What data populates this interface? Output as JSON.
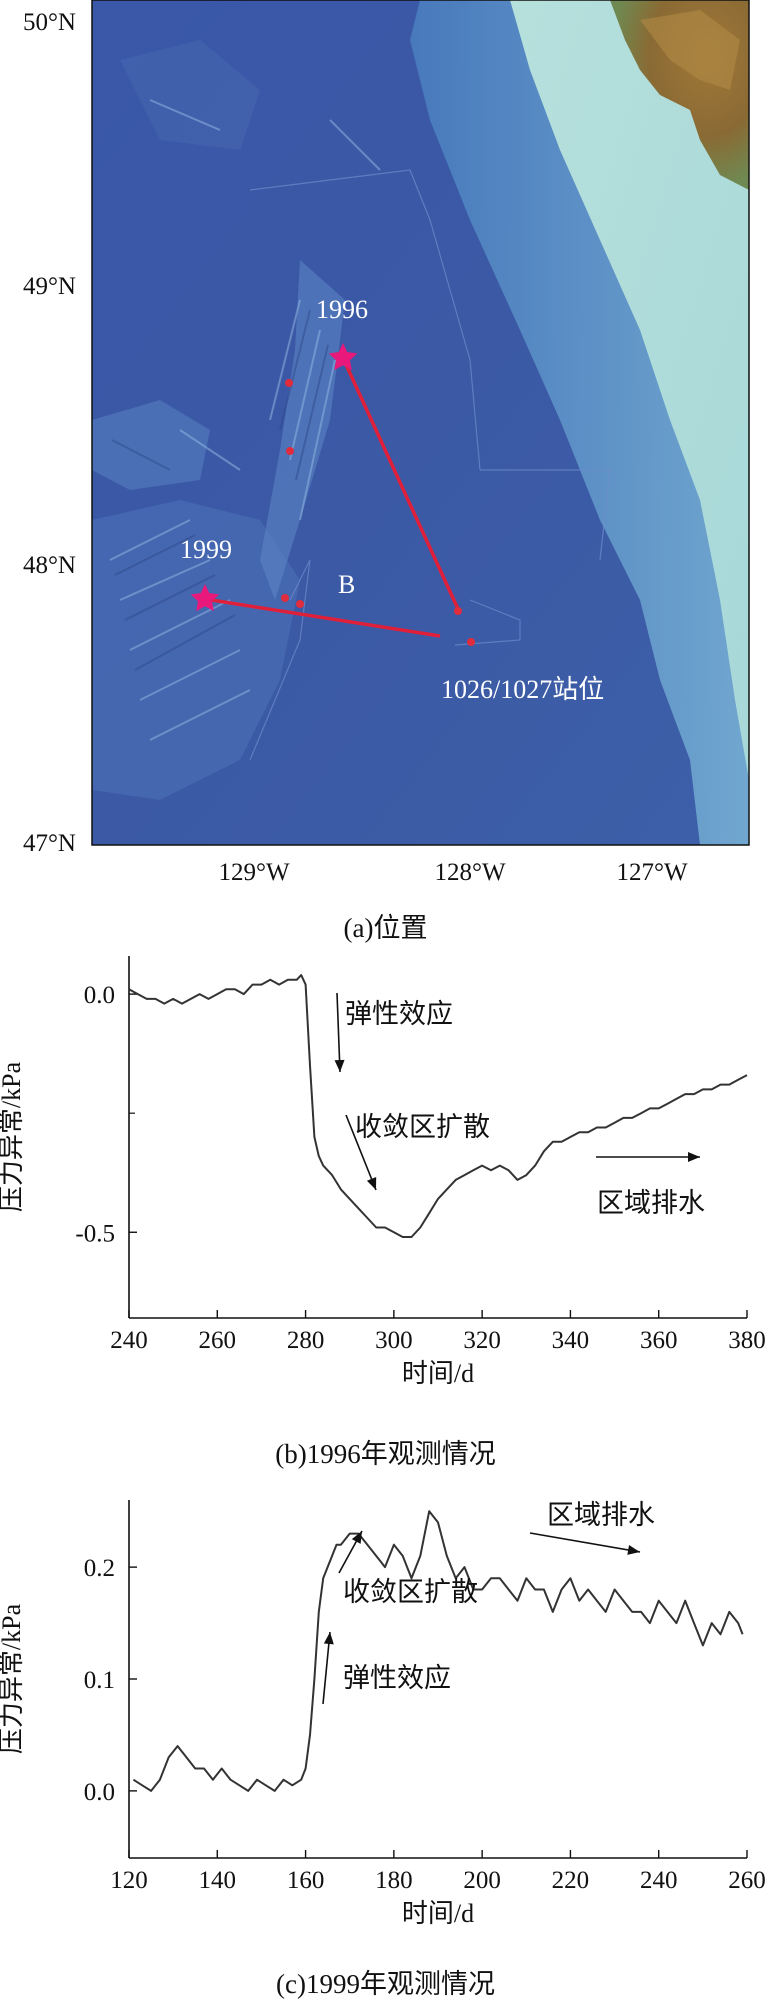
{
  "panel_a": {
    "caption": "(a)位置",
    "lat_labels": [
      "50°N",
      "49°N",
      "48°N",
      "47°N"
    ],
    "lon_labels": [
      "129°W",
      "128°W",
      "127°W"
    ],
    "label_1996": "1996",
    "label_1999": "1999",
    "label_B": "B",
    "label_station": "1026/1027站位",
    "colors": {
      "star": "#e8197a",
      "line": "#e0203a",
      "ocean": "#3e5aa6",
      "shelf": "#9fd2d6",
      "land": "#9a7a3a"
    }
  },
  "chart_data": [
    {
      "type": "line",
      "caption": "(b)1996年观测情况",
      "xlabel": "时间/d",
      "ylabel": "压力异常/kPa",
      "xlim": [
        240,
        380
      ],
      "ylim": [
        -0.68,
        0.08
      ],
      "xticks": [
        "240",
        "260",
        "280",
        "300",
        "320",
        "340",
        "360",
        "380"
      ],
      "yticks": [
        {
          "value": 0.0,
          "label": "0.0"
        },
        {
          "value": -0.5,
          "label": "-0.5"
        }
      ],
      "annotations": [
        "弹性效应",
        "收敛区扩散",
        "区域排水"
      ],
      "series": [
        {
          "x": [
            240,
            242,
            244,
            246,
            248,
            250,
            252,
            254,
            256,
            258,
            260,
            262,
            264,
            266,
            268,
            270,
            272,
            274,
            276,
            278,
            279,
            280,
            281,
            282,
            283,
            284,
            286,
            288,
            290,
            292,
            294,
            296,
            298,
            300,
            302,
            304,
            306,
            308,
            310,
            312,
            314,
            316,
            318,
            320,
            322,
            324,
            326,
            328,
            330,
            332,
            334,
            336,
            338,
            340,
            342,
            344,
            346,
            348,
            350,
            352,
            354,
            356,
            358,
            360,
            362,
            364,
            366,
            368,
            370,
            372,
            374,
            376,
            378,
            380
          ],
          "y": [
            0.01,
            0.0,
            -0.01,
            -0.01,
            -0.02,
            -0.01,
            -0.02,
            -0.01,
            0.0,
            -0.01,
            0.0,
            0.01,
            0.01,
            0.0,
            0.02,
            0.02,
            0.03,
            0.02,
            0.03,
            0.03,
            0.04,
            0.02,
            -0.15,
            -0.3,
            -0.34,
            -0.36,
            -0.38,
            -0.41,
            -0.43,
            -0.45,
            -0.47,
            -0.49,
            -0.49,
            -0.5,
            -0.51,
            -0.51,
            -0.49,
            -0.46,
            -0.43,
            -0.41,
            -0.39,
            -0.38,
            -0.37,
            -0.36,
            -0.37,
            -0.36,
            -0.37,
            -0.39,
            -0.38,
            -0.36,
            -0.33,
            -0.31,
            -0.31,
            -0.3,
            -0.29,
            -0.29,
            -0.28,
            -0.28,
            -0.27,
            -0.26,
            -0.26,
            -0.25,
            -0.24,
            -0.24,
            -0.23,
            -0.22,
            -0.21,
            -0.21,
            -0.2,
            -0.2,
            -0.19,
            -0.19,
            -0.18,
            -0.17
          ]
        }
      ]
    },
    {
      "type": "line",
      "caption": "(c)1999年观测情况",
      "xlabel": "时间/d",
      "ylabel": "压力异常/kPa",
      "xlim": [
        120,
        260
      ],
      "ylim": [
        -0.06,
        0.26
      ],
      "xticks": [
        "120",
        "140",
        "160",
        "180",
        "200",
        "220",
        "240",
        "260"
      ],
      "yticks": [
        {
          "value": 0.0,
          "label": "0.0"
        },
        {
          "value": 0.1,
          "label": "0.1"
        },
        {
          "value": 0.2,
          "label": "0.2"
        }
      ],
      "annotations": [
        "区域排水",
        "收敛区扩散",
        "弹性效应"
      ],
      "series": [
        {
          "x": [
            121,
            123,
            125,
            127,
            129,
            131,
            133,
            135,
            137,
            139,
            141,
            143,
            145,
            147,
            149,
            151,
            153,
            155,
            157,
            159,
            160,
            161,
            162,
            163,
            164,
            165,
            166,
            167,
            168,
            170,
            172,
            174,
            176,
            178,
            180,
            182,
            184,
            186,
            188,
            190,
            192,
            194,
            196,
            198,
            200,
            202,
            204,
            206,
            208,
            210,
            212,
            214,
            216,
            218,
            220,
            222,
            224,
            226,
            228,
            230,
            232,
            234,
            236,
            238,
            240,
            242,
            244,
            246,
            248,
            250,
            252,
            254,
            256,
            258,
            259
          ],
          "y": [
            0.01,
            0.005,
            0.0,
            0.01,
            0.03,
            0.04,
            0.03,
            0.02,
            0.02,
            0.01,
            0.02,
            0.01,
            0.005,
            0.0,
            0.01,
            0.005,
            0.0,
            0.01,
            0.005,
            0.01,
            0.02,
            0.05,
            0.1,
            0.16,
            0.19,
            0.2,
            0.21,
            0.22,
            0.22,
            0.23,
            0.23,
            0.22,
            0.21,
            0.2,
            0.22,
            0.21,
            0.19,
            0.21,
            0.25,
            0.24,
            0.21,
            0.19,
            0.2,
            0.18,
            0.18,
            0.19,
            0.19,
            0.18,
            0.17,
            0.19,
            0.18,
            0.18,
            0.16,
            0.18,
            0.19,
            0.17,
            0.18,
            0.17,
            0.16,
            0.18,
            0.17,
            0.16,
            0.16,
            0.15,
            0.17,
            0.16,
            0.15,
            0.17,
            0.15,
            0.13,
            0.15,
            0.14,
            0.16,
            0.15,
            0.14
          ]
        }
      ]
    }
  ]
}
